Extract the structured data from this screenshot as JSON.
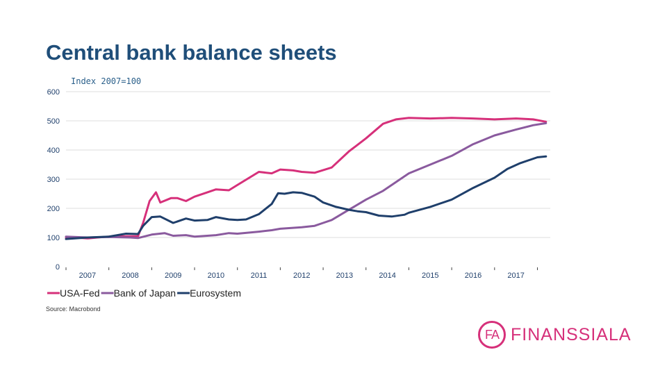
{
  "slide": {
    "title": "Central bank balance sheets",
    "subtitle": "Index 2007=100",
    "source": "Source: Macrobond",
    "logo_mark": "FA",
    "logo_text": "FINANSSIALA"
  },
  "colors": {
    "fed": "#d6307a",
    "boj": "#8a5a9e",
    "euro": "#1f3f6b",
    "grid": "#dcdcdc",
    "axis_text": "#1f3f6b"
  },
  "chart_data": {
    "type": "line",
    "title": "Central bank balance sheets",
    "ylabel": "Index 2007=100",
    "ylim": [
      0,
      600
    ],
    "yticks": [
      0,
      100,
      200,
      300,
      400,
      500,
      600
    ],
    "xlim": [
      2007.0,
      2018.3
    ],
    "xticks": [
      2007,
      2008,
      2009,
      2010,
      2011,
      2012,
      2013,
      2014,
      2015,
      2016,
      2017
    ],
    "legend": "bottom-left",
    "series": [
      {
        "name": "USA-Fed",
        "color": "#d6307a",
        "x": [
          2007.0,
          2007.3,
          2007.5,
          2007.8,
          2008.0,
          2008.4,
          2008.68,
          2008.8,
          2008.95,
          2009.05,
          2009.1,
          2009.2,
          2009.45,
          2009.6,
          2009.8,
          2010.0,
          2010.3,
          2010.5,
          2010.8,
          2011.0,
          2011.5,
          2011.8,
          2012.0,
          2012.3,
          2012.5,
          2012.8,
          2013.2,
          2013.6,
          2014.0,
          2014.4,
          2014.7,
          2015.0,
          2015.5,
          2016.0,
          2016.5,
          2017.0,
          2017.5,
          2017.9,
          2018.2
        ],
        "values": [
          100,
          99,
          97,
          101,
          103,
          104,
          104,
          150,
          225,
          245,
          255,
          220,
          235,
          235,
          225,
          240,
          255,
          265,
          262,
          280,
          325,
          320,
          333,
          330,
          325,
          322,
          340,
          395,
          440,
          490,
          505,
          510,
          508,
          510,
          508,
          505,
          508,
          505,
          497
        ]
      },
      {
        "name": "Bank of Japan",
        "color": "#8a5a9e",
        "x": [
          2007.0,
          2007.5,
          2008.0,
          2008.5,
          2008.68,
          2009.0,
          2009.3,
          2009.5,
          2009.8,
          2010.0,
          2010.5,
          2010.8,
          2011.0,
          2011.5,
          2011.8,
          2012.0,
          2012.5,
          2012.8,
          2013.0,
          2013.2,
          2013.6,
          2014.0,
          2014.4,
          2014.8,
          2015.0,
          2015.5,
          2016.0,
          2016.5,
          2017.0,
          2017.5,
          2017.9,
          2018.2
        ],
        "values": [
          103,
          100,
          102,
          100,
          98,
          110,
          115,
          106,
          108,
          103,
          108,
          115,
          113,
          120,
          125,
          130,
          135,
          140,
          150,
          160,
          195,
          230,
          260,
          300,
          320,
          350,
          380,
          420,
          450,
          470,
          485,
          492
        ]
      },
      {
        "name": "Eurosystem",
        "color": "#1f3f6b",
        "x": [
          2007.0,
          2007.5,
          2008.0,
          2008.4,
          2008.68,
          2008.8,
          2009.0,
          2009.2,
          2009.5,
          2009.8,
          2010.0,
          2010.3,
          2010.5,
          2010.8,
          2011.0,
          2011.2,
          2011.5,
          2011.8,
          2011.95,
          2012.1,
          2012.3,
          2012.5,
          2012.8,
          2013.0,
          2013.3,
          2013.6,
          2013.8,
          2014.0,
          2014.3,
          2014.6,
          2014.9,
          2015.0,
          2015.5,
          2016.0,
          2016.5,
          2017.0,
          2017.3,
          2017.6,
          2018.0,
          2018.2
        ],
        "values": [
          95,
          100,
          103,
          113,
          112,
          140,
          170,
          172,
          150,
          165,
          158,
          160,
          170,
          162,
          160,
          162,
          180,
          215,
          252,
          250,
          255,
          253,
          240,
          220,
          205,
          195,
          190,
          187,
          175,
          172,
          178,
          185,
          205,
          230,
          270,
          305,
          335,
          355,
          375,
          378
        ]
      }
    ]
  }
}
